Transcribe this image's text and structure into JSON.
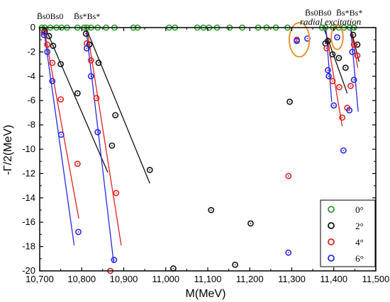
{
  "chart_data": {
    "type": "scatter",
    "xlabel": "M(MeV)",
    "ylabel": "-Γ/2(MeV)",
    "xlim": [
      10700,
      11500
    ],
    "ylim": [
      -20,
      0
    ],
    "x_ticks": [
      "10,700",
      "10,800",
      "10,900",
      "11,000",
      "11,100",
      "11,200",
      "11,300",
      "11,400",
      "11,500"
    ],
    "y_ticks": [
      "0",
      "-2",
      "-4",
      "-6",
      "-8",
      "-10",
      "-12",
      "-14",
      "-16",
      "-18",
      "-20"
    ],
    "legend_position": "bottom-right",
    "annotations": {
      "bb1": "B̄s0Bs0",
      "bb2": "B̄s*Bs*",
      "bb3": "B̄s0Bs0",
      "bb4": "B̄s*Bs*",
      "radial": "radial excitation"
    },
    "series": [
      {
        "name": "0°",
        "color": "#2e9c2e",
        "points": [
          [
            10705,
            0
          ],
          [
            10712,
            0
          ],
          [
            10725,
            0
          ],
          [
            10740,
            0
          ],
          [
            10752,
            0
          ],
          [
            10765,
            0
          ],
          [
            10790,
            0
          ],
          [
            10806,
            0
          ],
          [
            10813,
            0
          ],
          [
            10822,
            0
          ],
          [
            10838,
            0
          ],
          [
            10858,
            0
          ],
          [
            10878,
            0
          ],
          [
            10923,
            0
          ],
          [
            10933,
            0
          ],
          [
            11008,
            0
          ],
          [
            11022,
            0
          ],
          [
            11075,
            0
          ],
          [
            11090,
            0
          ],
          [
            11103,
            0
          ],
          [
            11122,
            0
          ],
          [
            11152,
            0
          ],
          [
            11182,
            0
          ],
          [
            11220,
            0
          ],
          [
            11240,
            0
          ],
          [
            11262,
            0
          ],
          [
            11290,
            0
          ],
          [
            11372,
            0
          ],
          [
            11380,
            0
          ],
          [
            11398,
            0
          ],
          [
            11412,
            0
          ],
          [
            11424,
            0
          ],
          [
            11438,
            0
          ],
          [
            11448,
            0
          ]
        ]
      },
      {
        "name": "2°",
        "color": "#111111",
        "points": [
          [
            10712,
            -0.3
          ],
          [
            10722,
            -0.7
          ],
          [
            10732,
            -1.5
          ],
          [
            10750,
            -3.0
          ],
          [
            10790,
            -5.4
          ],
          [
            10810,
            -0.5
          ],
          [
            10818,
            -1.4
          ],
          [
            10840,
            -2.9
          ],
          [
            10872,
            -9.7
          ],
          [
            10880,
            -7.2
          ],
          [
            10962,
            -11.7
          ],
          [
            11018,
            -19.8
          ],
          [
            11108,
            -15.0
          ],
          [
            11165,
            -19.5
          ],
          [
            11202,
            -16.1
          ],
          [
            11295,
            -6.1
          ],
          [
            11380,
            -1.3
          ],
          [
            11386,
            -1.1
          ],
          [
            11397,
            -2.2
          ],
          [
            11412,
            -2.5
          ],
          [
            11428,
            -3.3
          ],
          [
            11446,
            -0.6
          ],
          [
            11456,
            -1.4
          ]
        ]
      },
      {
        "name": "4°",
        "color": "#e02020",
        "points": [
          [
            10710,
            -0.4
          ],
          [
            10718,
            -1.4
          ],
          [
            10730,
            -2.9
          ],
          [
            10750,
            -5.9
          ],
          [
            10790,
            -11.2
          ],
          [
            10812,
            -1.3
          ],
          [
            10822,
            -2.7
          ],
          [
            10835,
            -5.8
          ],
          [
            10882,
            -13.6
          ],
          [
            10868,
            -20.0
          ],
          [
            11292,
            -12.2
          ],
          [
            11312,
            -1.0
          ],
          [
            11383,
            -1.7
          ],
          [
            11397,
            -4.4
          ],
          [
            11413,
            -4.9
          ],
          [
            11420,
            -7.4
          ],
          [
            11432,
            -6.6
          ],
          [
            11440,
            -4.8
          ],
          [
            11448,
            -1.4
          ],
          [
            11456,
            -2.3
          ]
        ]
      },
      {
        "name": "6°",
        "color": "#2828e0",
        "points": [
          [
            10710,
            -0.6
          ],
          [
            10718,
            -2.0
          ],
          [
            10730,
            -4.4
          ],
          [
            10751,
            -8.8
          ],
          [
            10792,
            -16.8
          ],
          [
            10812,
            -1.7
          ],
          [
            10822,
            -4.0
          ],
          [
            10838,
            -8.6
          ],
          [
            10877,
            -19.1
          ],
          [
            11292,
            -18.5
          ],
          [
            11312,
            -1.1
          ],
          [
            11337,
            -0.9
          ],
          [
            11408,
            -0.8
          ],
          [
            11386,
            -3.5
          ],
          [
            11388,
            -4.0
          ],
          [
            11400,
            -6.4
          ],
          [
            11423,
            -10.1
          ],
          [
            11437,
            -6.8
          ],
          [
            11444,
            -2.0
          ],
          [
            11448,
            -4.3
          ]
        ]
      }
    ],
    "fit_lines": [
      {
        "color": "#111111",
        "from": [
          10713,
          0
        ],
        "to": [
          10862,
          -11.9
        ]
      },
      {
        "color": "#111111",
        "from": [
          10810,
          0
        ],
        "to": [
          10962,
          -12.8
        ]
      },
      {
        "color": "#111111",
        "from": [
          11376,
          0
        ],
        "to": [
          11432,
          -5.4
        ]
      },
      {
        "color": "#111111",
        "from": [
          11440,
          0
        ],
        "to": [
          11460,
          -2.8
        ]
      },
      {
        "color": "#e02020",
        "from": [
          10710,
          0
        ],
        "to": [
          10793,
          -15.7
        ]
      },
      {
        "color": "#e02020",
        "from": [
          10812,
          0
        ],
        "to": [
          10894,
          -17.9
        ]
      },
      {
        "color": "#e02020",
        "from": [
          11380,
          0
        ],
        "to": [
          11420,
          -8.1
        ]
      },
      {
        "color": "#e02020",
        "from": [
          11440,
          0
        ],
        "to": [
          11457,
          -3.3
        ]
      },
      {
        "color": "#2828e0",
        "from": [
          10709,
          0
        ],
        "to": [
          10782,
          -17.9
        ]
      },
      {
        "color": "#2828e0",
        "from": [
          10810,
          0
        ],
        "to": [
          10876,
          -19.3
        ]
      },
      {
        "color": "#2828e0",
        "from": [
          11381,
          0
        ],
        "to": [
          11395,
          -6.1
        ]
      },
      {
        "color": "#2828e0",
        "from": [
          11440,
          0
        ],
        "to": [
          11458,
          -6.9
        ]
      }
    ],
    "highlight_ellipses": [
      {
        "cx": 11318,
        "cy": -1.0,
        "rx": 24,
        "ry": 1.4
      },
      {
        "cx": 11408,
        "cy": -0.8,
        "rx": 14,
        "ry": 1.0
      }
    ]
  }
}
